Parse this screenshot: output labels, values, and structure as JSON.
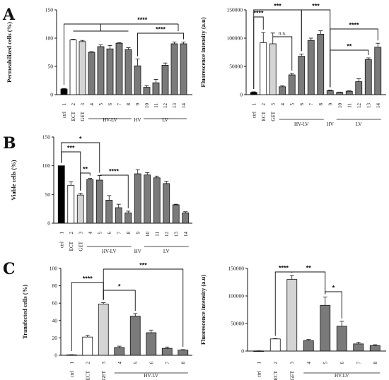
{
  "panel_letters": [
    "A",
    "B",
    "C"
  ],
  "chart_data": [
    {
      "id": "A1",
      "type": "bar",
      "ylabel": "Permeabilized cells (%)",
      "yticks": [
        "0",
        "50",
        "100",
        "150"
      ],
      "ylim": [
        0,
        150
      ],
      "categories": [
        "1",
        "2",
        "3",
        "4",
        "5",
        "6",
        "7",
        "8",
        "9",
        "10",
        "11",
        "12",
        "13",
        "14"
      ],
      "sublabels": [
        "ctrl",
        "ECT",
        "GET",
        "",
        "",
        "",
        "",
        "",
        "",
        "",
        "",
        "",
        "",
        ""
      ],
      "values": [
        10,
        97,
        94,
        75,
        85,
        81,
        91,
        80,
        51,
        13,
        21,
        52,
        90,
        90
      ],
      "errors": [
        1,
        1,
        2,
        1,
        3,
        6,
        1,
        3,
        12,
        3,
        6,
        4,
        3,
        3
      ],
      "fills": [
        "#000000",
        "#ffffff",
        "#d4d4d4",
        "#7a7a7a",
        "#7a7a7a",
        "#7a7a7a",
        "#7a7a7a",
        "#7a7a7a",
        "#7a7a7a",
        "#7a7a7a",
        "#7a7a7a",
        "#7a7a7a",
        "#7a7a7a",
        "#7a7a7a"
      ],
      "groups": [
        {
          "label": "HV-LV",
          "from": 4,
          "to": 8
        },
        {
          "label": "HV",
          "from": 9,
          "to": 9
        },
        {
          "label": "LV",
          "from": 10,
          "to": 14
        }
      ],
      "significance": [
        "****",
        "****"
      ]
    },
    {
      "id": "A2",
      "type": "bar",
      "ylabel": "Fluorescence intensity (a.u)",
      "yticks": [
        "0",
        "50000",
        "100000",
        "150000"
      ],
      "ylim": [
        0,
        150000
      ],
      "categories": [
        "1",
        "2",
        "3",
        "4",
        "5",
        "6",
        "7",
        "8",
        "9",
        "10",
        "11",
        "12",
        "13",
        "14"
      ],
      "sublabels": [
        "ctrl",
        "ECT",
        "GET",
        "",
        "",
        "",
        "",
        "",
        "",
        "",
        "",
        "",
        "",
        ""
      ],
      "values": [
        4000,
        92000,
        90000,
        14000,
        35000,
        68000,
        96000,
        107000,
        7000,
        4000,
        6000,
        23000,
        62000,
        84000
      ],
      "errors": [
        1000,
        18000,
        19000,
        1500,
        2500,
        4000,
        4000,
        6000,
        1200,
        600,
        800,
        5000,
        3000,
        7000
      ],
      "fills": [
        "#000000",
        "#ffffff",
        "#d4d4d4",
        "#7a7a7a",
        "#7a7a7a",
        "#7a7a7a",
        "#7a7a7a",
        "#7a7a7a",
        "#7a7a7a",
        "#7a7a7a",
        "#7a7a7a",
        "#7a7a7a",
        "#7a7a7a",
        "#7a7a7a"
      ],
      "groups": [
        {
          "label": "HV-LV",
          "from": 4,
          "to": 8
        },
        {
          "label": "HV",
          "from": 9,
          "to": 9
        },
        {
          "label": "LV",
          "from": 10,
          "to": 14
        }
      ],
      "significance": [
        "****",
        "n.s.",
        "***",
        "***",
        "****",
        "**"
      ]
    },
    {
      "id": "B",
      "type": "bar",
      "ylabel": "Viable cells (%)",
      "yticks": [
        "0",
        "50",
        "100",
        "150"
      ],
      "ylim": [
        0,
        150
      ],
      "categories": [
        "1",
        "2",
        "3",
        "4",
        "5",
        "6",
        "7",
        "8",
        "9",
        "10",
        "11",
        "12",
        "13",
        "14"
      ],
      "sublabels": [
        "ctrl",
        "ECT",
        "GET",
        "",
        "",
        "",
        "",
        "",
        "",
        "",
        "",
        "",
        "",
        ""
      ],
      "values": [
        100,
        66,
        49,
        76,
        75,
        40,
        27,
        18,
        86,
        84,
        79,
        69,
        32,
        18
      ],
      "errors": [
        0,
        6,
        3,
        2,
        8,
        8,
        6,
        3,
        7,
        4,
        3,
        4,
        1,
        2
      ],
      "fills": [
        "#000000",
        "#ffffff",
        "#d4d4d4",
        "#7a7a7a",
        "#7a7a7a",
        "#7a7a7a",
        "#7a7a7a",
        "#7a7a7a",
        "#7a7a7a",
        "#7a7a7a",
        "#7a7a7a",
        "#7a7a7a",
        "#7a7a7a",
        "#7a7a7a"
      ],
      "groups": [
        {
          "label": "HV-LV",
          "from": 4,
          "to": 8
        },
        {
          "label": "HV",
          "from": 9,
          "to": 9
        },
        {
          "label": "LV",
          "from": 10,
          "to": 14
        }
      ],
      "significance": [
        "*",
        "***",
        "**",
        "****"
      ]
    },
    {
      "id": "C1",
      "type": "bar",
      "ylabel": "Transfected cells (%)",
      "yticks": [
        "0",
        "20",
        "40",
        "60",
        "80",
        "100"
      ],
      "ylim": [
        0,
        100
      ],
      "categories": [
        "1",
        "2",
        "3",
        "4",
        "5",
        "6",
        "7",
        "8"
      ],
      "sublabels": [
        "ctrl",
        "ECT",
        "GET",
        "",
        "",
        "",
        "",
        ""
      ],
      "values": [
        0.5,
        21,
        59,
        9,
        45,
        26,
        8,
        6
      ],
      "errors": [
        0.2,
        2,
        1.5,
        1.5,
        3,
        3,
        1.5,
        0.5
      ],
      "fills": [
        "#000000",
        "#ffffff",
        "#d4d4d4",
        "#7a7a7a",
        "#7a7a7a",
        "#7a7a7a",
        "#7a7a7a",
        "#7a7a7a"
      ],
      "groups": [
        {
          "label": "HV-LV",
          "from": 4,
          "to": 8
        }
      ],
      "significance": [
        "****",
        "***",
        "*"
      ]
    },
    {
      "id": "C2",
      "type": "bar",
      "ylabel": "Fluorescence intensity (a.u)",
      "yticks": [
        "0",
        "50000",
        "100000",
        "150000"
      ],
      "ylim": [
        0,
        150000
      ],
      "categories": [
        "1",
        "2",
        "3",
        "4",
        "5",
        "6",
        "7",
        "8"
      ],
      "sublabels": [
        "ctrl",
        "ECT",
        "GET",
        "",
        "",
        "",
        "",
        ""
      ],
      "values": [
        300,
        22000,
        130000,
        19000,
        83000,
        45000,
        13000,
        10000
      ],
      "errors": [
        100,
        500,
        7000,
        2000,
        15000,
        9000,
        3000,
        1500
      ],
      "fills": [
        "#000000",
        "#ffffff",
        "#d4d4d4",
        "#7a7a7a",
        "#7a7a7a",
        "#7a7a7a",
        "#7a7a7a",
        "#7a7a7a"
      ],
      "groups": [
        {
          "label": "HV-LV",
          "from": 4,
          "to": 8
        }
      ],
      "significance": [
        "****",
        "**",
        "*"
      ]
    }
  ]
}
